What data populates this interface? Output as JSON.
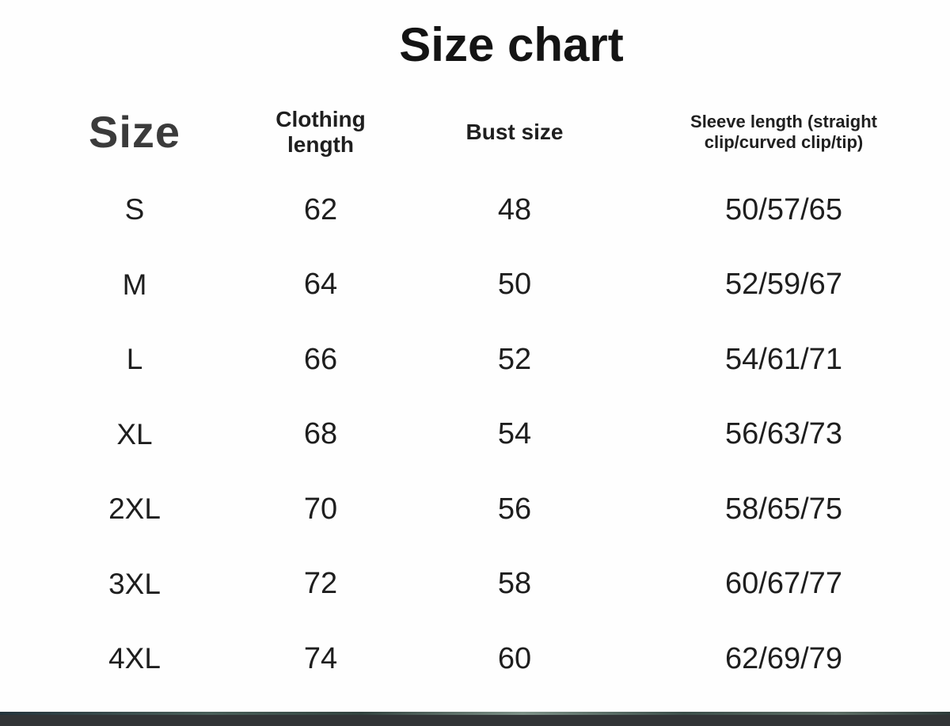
{
  "page": {
    "title": "Size chart"
  },
  "chart_data": {
    "type": "table",
    "title": "Size chart",
    "columns": [
      "Size",
      "Clothing length",
      "Bust size",
      "Sleeve length (straight clip/curved clip/tip)"
    ],
    "rows": [
      [
        "S",
        "62",
        "48",
        "50/57/65"
      ],
      [
        "M",
        "64",
        "50",
        "52/59/67"
      ],
      [
        "L",
        "66",
        "52",
        "54/61/71"
      ],
      [
        "XL",
        "68",
        "54",
        "56/63/73"
      ],
      [
        "2XL",
        "70",
        "56",
        "58/65/75"
      ],
      [
        "3XL",
        "72",
        "58",
        "60/67/77"
      ],
      [
        "4XL",
        "74",
        "60",
        "62/69/79"
      ]
    ],
    "units_note": "",
    "layout": {
      "header_row": true,
      "gridlines": "none",
      "background": "#fefefe"
    }
  },
  "colors": {
    "title_text": "#141414",
    "size_header_text": "#3b3b3b",
    "header_text": "#1f1f1f",
    "cell_text": "#1e1e1e",
    "bottom_bar": "#323436",
    "bottom_bar_accent": "#7e9288"
  }
}
